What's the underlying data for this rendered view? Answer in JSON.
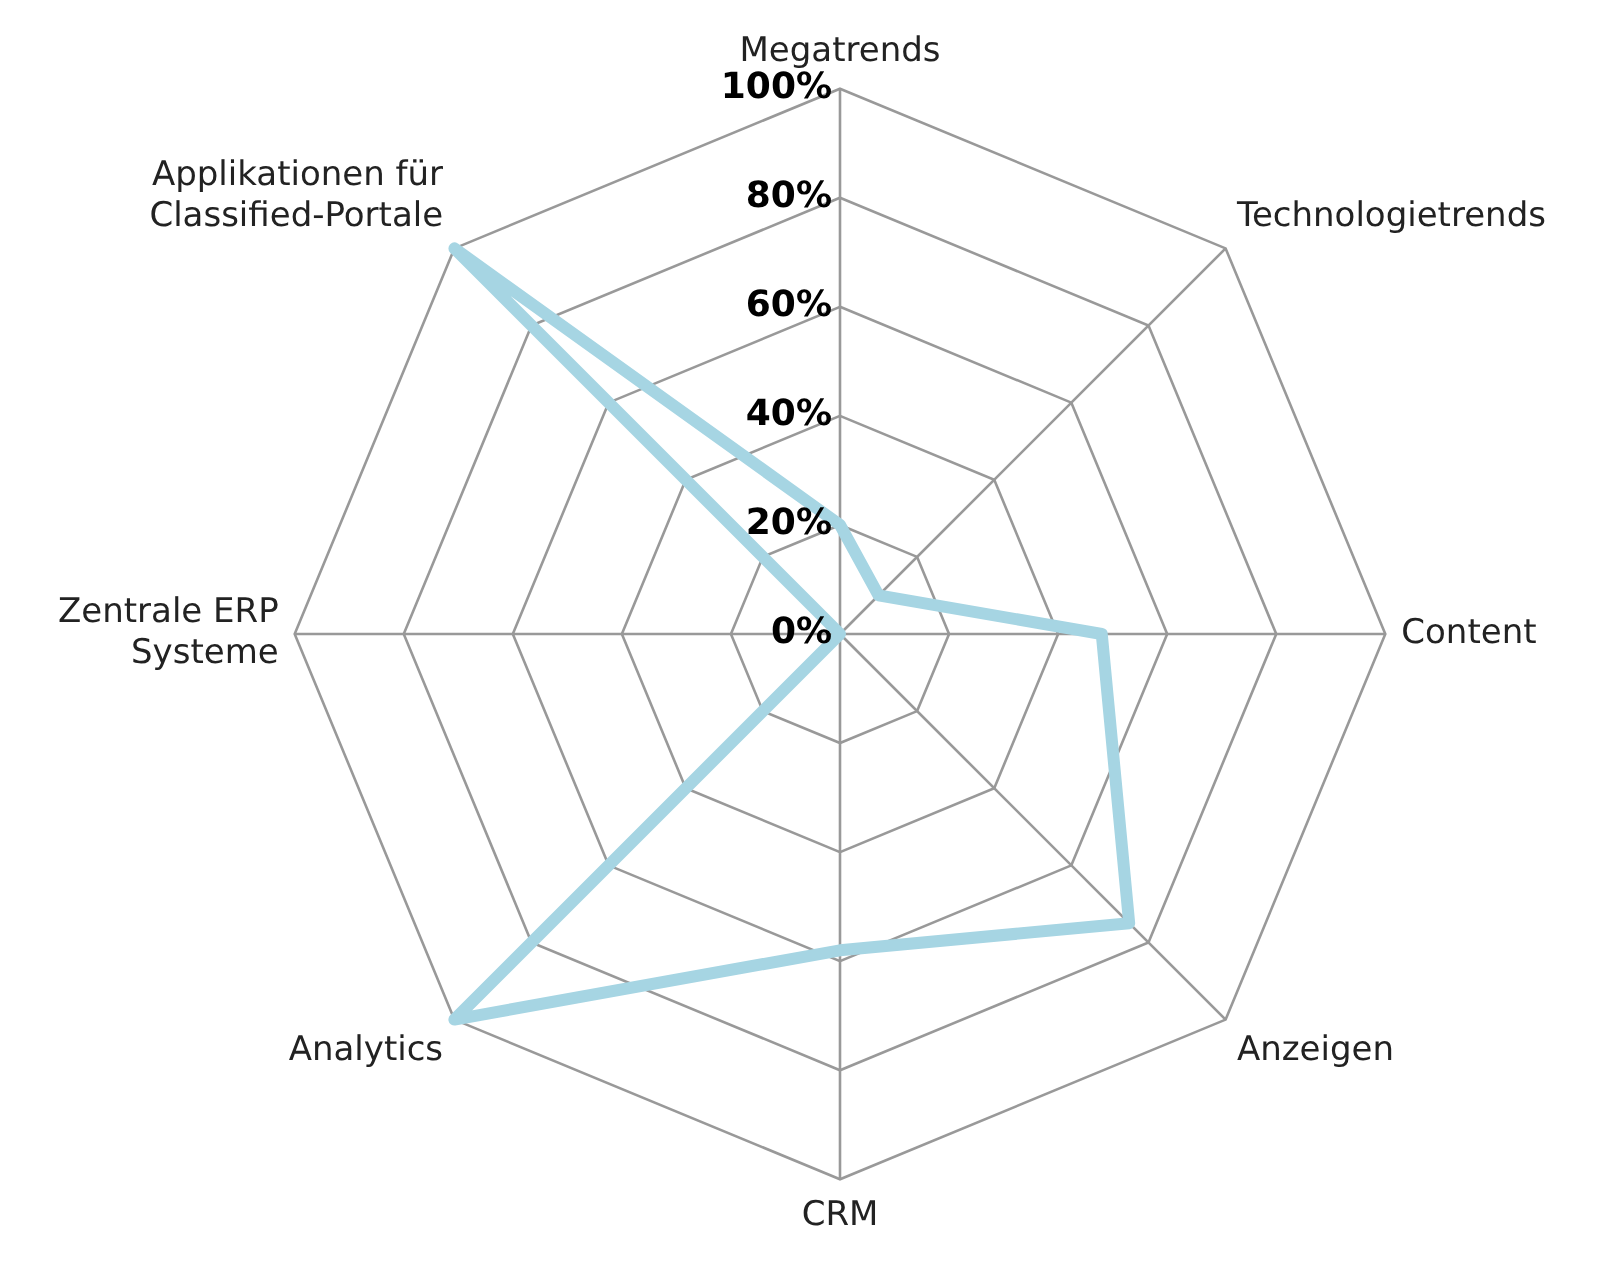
{
  "chart_data": {
    "type": "radar",
    "categories": [
      "Megatrends",
      "Technologietrends",
      "Content",
      "Anzeigen",
      "CRM",
      "Analytics",
      "Zentrale ERP Systeme",
      "Applikationen für Classified-Portale"
    ],
    "series": [
      {
        "color": "#a6d5e3",
        "values": [
          20,
          10,
          48,
          75,
          58,
          100,
          0,
          100
        ]
      }
    ],
    "ylim": [
      0,
      100
    ],
    "yticks": [
      {
        "value": 0,
        "label": "0%"
      },
      {
        "value": 20,
        "label": "20%"
      },
      {
        "value": 40,
        "label": "40%"
      },
      {
        "value": 60,
        "label": "60%"
      },
      {
        "value": 80,
        "label": "80%"
      },
      {
        "value": 100,
        "label": "100%"
      }
    ],
    "grid": true,
    "legend": false,
    "marker": "none",
    "line_style": "solid"
  }
}
